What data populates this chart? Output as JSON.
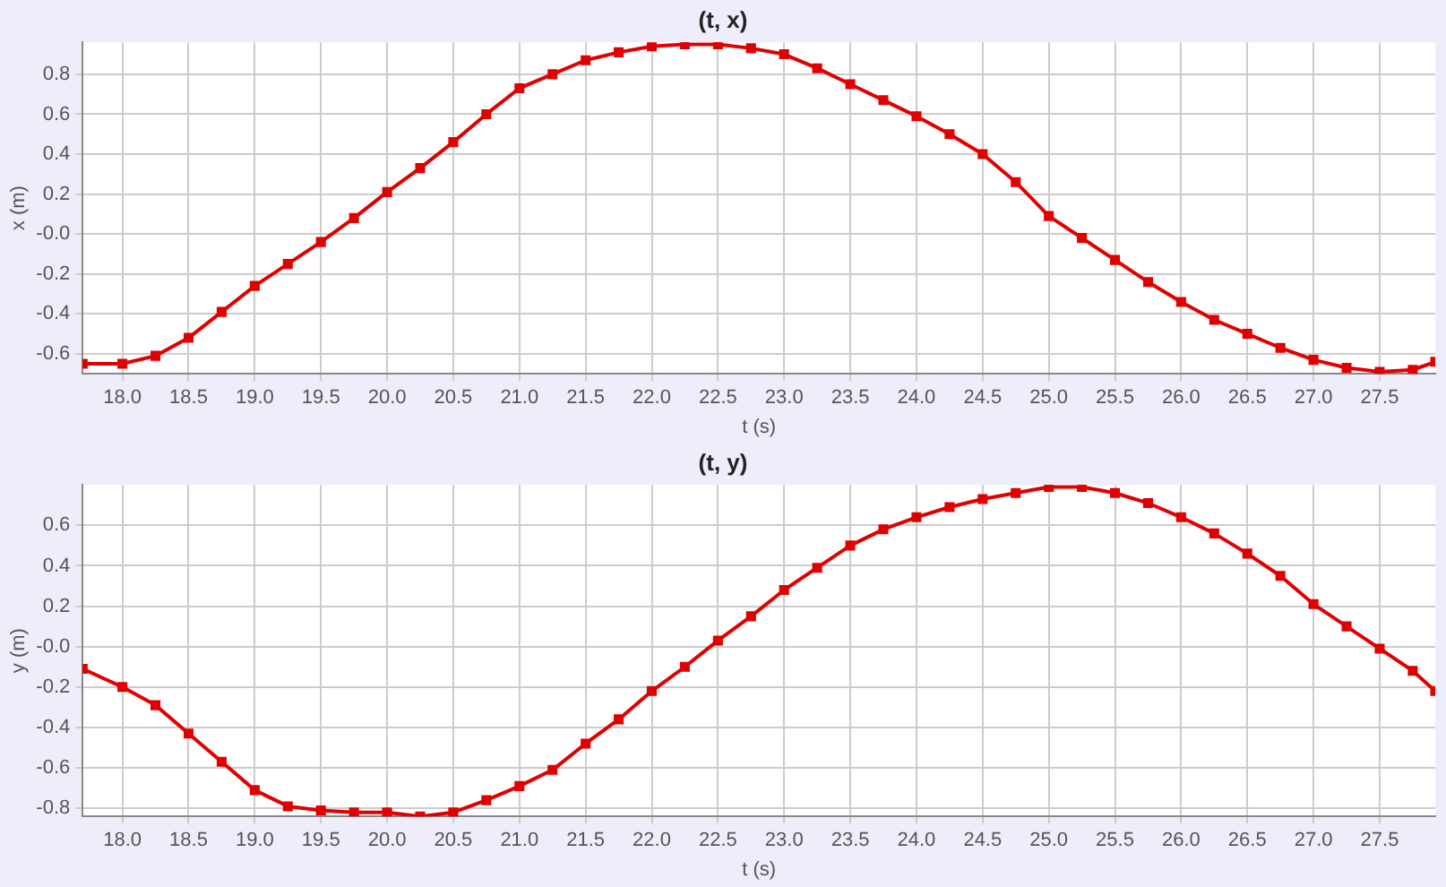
{
  "chart_data": [
    {
      "type": "line",
      "title": "(t, x)",
      "xlabel": "t (s)",
      "ylabel": "x (m)",
      "grid": true,
      "legend": false,
      "marker": "square",
      "line_style": "solid",
      "xlim": [
        17.7,
        27.92
      ],
      "ylim": [
        -0.7,
        0.96
      ],
      "xticks": [
        {
          "value": 18,
          "label": "18.0"
        },
        {
          "value": 18.5,
          "label": "18.5"
        },
        {
          "value": 19,
          "label": "19.0"
        },
        {
          "value": 19.5,
          "label": "19.5"
        },
        {
          "value": 20,
          "label": "20.0"
        },
        {
          "value": 20.5,
          "label": "20.5"
        },
        {
          "value": 21,
          "label": "21.0"
        },
        {
          "value": 21.5,
          "label": "21.5"
        },
        {
          "value": 22,
          "label": "22.0"
        },
        {
          "value": 22.5,
          "label": "22.5"
        },
        {
          "value": 23,
          "label": "23.0"
        },
        {
          "value": 23.5,
          "label": "23.5"
        },
        {
          "value": 24,
          "label": "24.0"
        },
        {
          "value": 24.5,
          "label": "24.5"
        },
        {
          "value": 25,
          "label": "25.0"
        },
        {
          "value": 25.5,
          "label": "25.5"
        },
        {
          "value": 26,
          "label": "26.0"
        },
        {
          "value": 26.5,
          "label": "26.5"
        },
        {
          "value": 27,
          "label": "27.0"
        },
        {
          "value": 27.5,
          "label": "27.5"
        }
      ],
      "yticks": [
        -0.6,
        -0.4,
        -0.2,
        {
          "value": 0,
          "label": "-0.0"
        },
        0.2,
        0.4,
        0.6,
        0.8
      ],
      "x": [
        17.7,
        18.0,
        18.25,
        18.5,
        18.75,
        19.0,
        19.25,
        19.5,
        19.75,
        20.0,
        20.25,
        20.5,
        20.75,
        21.0,
        21.25,
        21.5,
        21.75,
        22.0,
        22.25,
        22.5,
        22.75,
        23.0,
        23.25,
        23.5,
        23.75,
        24.0,
        24.25,
        24.5,
        24.75,
        25.0,
        25.25,
        25.5,
        25.75,
        26.0,
        26.25,
        26.5,
        26.75,
        27.0,
        27.25,
        27.5,
        27.75,
        27.92
      ],
      "series": [
        {
          "color": "#e00000",
          "values": [
            -0.65,
            -0.65,
            -0.61,
            -0.52,
            -0.39,
            -0.26,
            -0.15,
            -0.04,
            0.08,
            0.21,
            0.33,
            0.46,
            0.6,
            0.73,
            0.8,
            0.87,
            0.91,
            0.94,
            0.95,
            0.95,
            0.93,
            0.9,
            0.83,
            0.75,
            0.67,
            0.59,
            0.5,
            0.4,
            0.26,
            0.09,
            -0.02,
            -0.13,
            -0.24,
            -0.34,
            -0.43,
            -0.5,
            -0.57,
            -0.63,
            -0.67,
            -0.69,
            -0.68,
            -0.64
          ]
        }
      ]
    },
    {
      "type": "line",
      "title": "(t, y)",
      "xlabel": "t (s)",
      "ylabel": "y (m)",
      "grid": true,
      "legend": false,
      "marker": "square",
      "line_style": "solid",
      "xlim": [
        17.7,
        27.92
      ],
      "ylim": [
        -0.84,
        0.8
      ],
      "xticks": [
        {
          "value": 18,
          "label": "18.0"
        },
        {
          "value": 18.5,
          "label": "18.5"
        },
        {
          "value": 19,
          "label": "19.0"
        },
        {
          "value": 19.5,
          "label": "19.5"
        },
        {
          "value": 20,
          "label": "20.0"
        },
        {
          "value": 20.5,
          "label": "20.5"
        },
        {
          "value": 21,
          "label": "21.0"
        },
        {
          "value": 21.5,
          "label": "21.5"
        },
        {
          "value": 22,
          "label": "22.0"
        },
        {
          "value": 22.5,
          "label": "22.5"
        },
        {
          "value": 23,
          "label": "23.0"
        },
        {
          "value": 23.5,
          "label": "23.5"
        },
        {
          "value": 24,
          "label": "24.0"
        },
        {
          "value": 24.5,
          "label": "24.5"
        },
        {
          "value": 25,
          "label": "25.0"
        },
        {
          "value": 25.5,
          "label": "25.5"
        },
        {
          "value": 26,
          "label": "26.0"
        },
        {
          "value": 26.5,
          "label": "26.5"
        },
        {
          "value": 27,
          "label": "27.0"
        },
        {
          "value": 27.5,
          "label": "27.5"
        }
      ],
      "yticks": [
        -0.8,
        -0.6,
        -0.4,
        -0.2,
        {
          "value": 0,
          "label": "-0.0"
        },
        0.2,
        0.4,
        0.6
      ],
      "x": [
        17.7,
        18.0,
        18.25,
        18.5,
        18.75,
        19.0,
        19.25,
        19.5,
        19.75,
        20.0,
        20.25,
        20.5,
        20.75,
        21.0,
        21.25,
        21.5,
        21.75,
        22.0,
        22.25,
        22.5,
        22.75,
        23.0,
        23.25,
        23.5,
        23.75,
        24.0,
        24.25,
        24.5,
        24.75,
        25.0,
        25.25,
        25.5,
        25.75,
        26.0,
        26.25,
        26.5,
        26.75,
        27.0,
        27.25,
        27.5,
        27.75,
        27.92
      ],
      "series": [
        {
          "color": "#e00000",
          "values": [
            -0.11,
            -0.2,
            -0.29,
            -0.43,
            -0.57,
            -0.71,
            -0.79,
            -0.81,
            -0.82,
            -0.82,
            -0.84,
            -0.82,
            -0.76,
            -0.69,
            -0.61,
            -0.48,
            -0.36,
            -0.22,
            -0.1,
            0.03,
            0.15,
            0.28,
            0.39,
            0.5,
            0.58,
            0.64,
            0.69,
            0.73,
            0.76,
            0.79,
            0.79,
            0.76,
            0.71,
            0.64,
            0.56,
            0.46,
            0.35,
            0.21,
            0.1,
            -0.01,
            -0.12,
            -0.22
          ]
        }
      ]
    }
  ]
}
